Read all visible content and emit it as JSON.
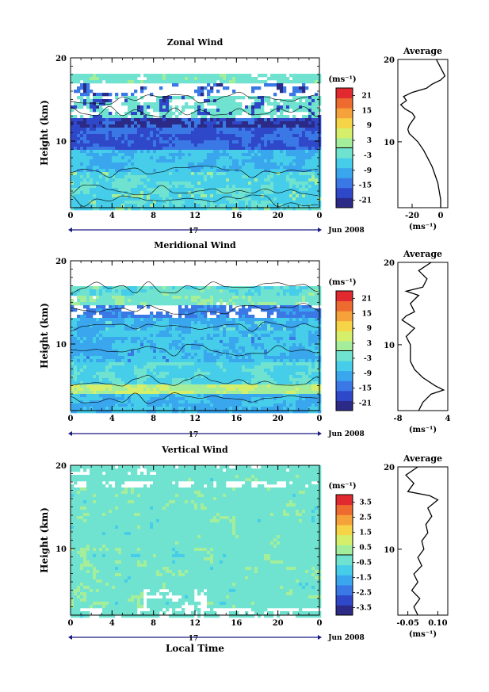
{
  "xlabel": "Local Time",
  "day_label": "17",
  "month_label": "Jun 2008",
  "ylabel": "Height (km)",
  "unit_label": "(ms⁻¹)",
  "avg_title": "Average",
  "panels": [
    {
      "title": "Zonal Wind",
      "x_ticks": [
        "0",
        "4",
        "8",
        "12",
        "16",
        "20",
        "0"
      ],
      "y_ticks": [
        "20",
        "10"
      ],
      "colorbar_ticks": [
        "21",
        "15",
        "9",
        "3",
        "-3",
        "-9",
        "-15",
        "-21"
      ],
      "avg_x_ticks": [
        "-20",
        "0"
      ],
      "avg_y_ticks": [
        "20",
        "10"
      ]
    },
    {
      "title": "Meridional Wind",
      "x_ticks": [
        "0",
        "4",
        "8",
        "12",
        "16",
        "20",
        "0"
      ],
      "y_ticks": [
        "20",
        "10"
      ],
      "colorbar_ticks": [
        "21",
        "15",
        "9",
        "3",
        "-3",
        "-9",
        "-15",
        "-21"
      ],
      "avg_x_ticks": [
        "-8",
        "4"
      ],
      "avg_y_ticks": [
        "20",
        "10"
      ]
    },
    {
      "title": "Vertical Wind",
      "x_ticks": [
        "0",
        "4",
        "8",
        "12",
        "16",
        "20",
        "0"
      ],
      "y_ticks": [
        "20",
        "10"
      ],
      "colorbar_ticks": [
        "3.5",
        "2.5",
        "1.5",
        "0.5",
        "-0.5",
        "-1.5",
        "-2.5",
        "-3.5"
      ],
      "avg_x_ticks": [
        "-0.05",
        "0.10"
      ],
      "avg_y_ticks": [
        "20",
        "10"
      ]
    }
  ],
  "colors": {
    "palette": [
      "#2b2a86",
      "#2f47c9",
      "#3a78e6",
      "#3aa6ee",
      "#45cde9",
      "#6fe3cf",
      "#a4ee9b",
      "#d6ef6b",
      "#f5d547",
      "#f5a23a",
      "#ee6b2f",
      "#e02a2f"
    ]
  },
  "chart_data": [
    {
      "type": "heatmap",
      "title": "Zonal Wind",
      "xlabel": "Local Time",
      "ylabel": "Height (km)",
      "x_range": [
        0,
        24
      ],
      "y_range": [
        2,
        20
      ],
      "colorbar_range": [
        -24,
        24
      ],
      "colorbar_unit": "(ms-1)",
      "average_profile": {
        "xlim": [
          -30,
          5
        ],
        "y": [
          2,
          3,
          4,
          5,
          6,
          7,
          8,
          9,
          10,
          10.5,
          11,
          11.5,
          12,
          12.5,
          13,
          13.5,
          14,
          14.5,
          15,
          15.5,
          16,
          16.5,
          17,
          17.5,
          18,
          19,
          20
        ],
        "x": [
          0,
          0,
          -1,
          -2,
          -4,
          -6,
          -9,
          -12,
          -16,
          -19,
          -22,
          -23,
          -22,
          -20,
          -18,
          -20,
          -25,
          -28,
          -24,
          -26,
          -20,
          -10,
          -6,
          0,
          3,
          0,
          -3
        ]
      }
    },
    {
      "type": "heatmap",
      "title": "Meridional Wind",
      "xlabel": "Local Time",
      "ylabel": "Height (km)",
      "x_range": [
        0,
        24
      ],
      "y_range": [
        2,
        20
      ],
      "colorbar_range": [
        -24,
        24
      ],
      "colorbar_unit": "(ms-1)",
      "average_profile": {
        "xlim": [
          -8,
          4
        ],
        "y": [
          2,
          3,
          4,
          4.5,
          5,
          6,
          7,
          8,
          9,
          10,
          11,
          12,
          13,
          13.5,
          14,
          15,
          16,
          16.5,
          17,
          18,
          19,
          20
        ],
        "x": [
          -3,
          -2,
          0,
          3,
          1,
          -2,
          -4,
          -5,
          -5,
          -5,
          -6,
          -4,
          -7,
          -6,
          -4,
          -5,
          -3,
          -6,
          -2,
          -1,
          -3,
          0
        ]
      }
    },
    {
      "type": "heatmap",
      "title": "Vertical Wind",
      "xlabel": "Local Time",
      "ylabel": "Height (km)",
      "x_range": [
        0,
        24
      ],
      "y_range": [
        2,
        20
      ],
      "colorbar_range": [
        -4,
        4
      ],
      "colorbar_unit": "(ms-1)",
      "average_profile": {
        "xlim": [
          -0.1,
          0.15
        ],
        "y": [
          2,
          3,
          4,
          5,
          6,
          7,
          8,
          9,
          10,
          11,
          12,
          13,
          14,
          15,
          16,
          16.5,
          17,
          18,
          19,
          20
        ],
        "x": [
          0.0,
          -0.02,
          0.01,
          -0.03,
          0.0,
          -0.02,
          0.02,
          0.0,
          0.03,
          0.02,
          0.05,
          0.04,
          0.07,
          0.05,
          0.1,
          0.06,
          -0.05,
          -0.02,
          -0.06,
          0.0
        ]
      }
    }
  ]
}
